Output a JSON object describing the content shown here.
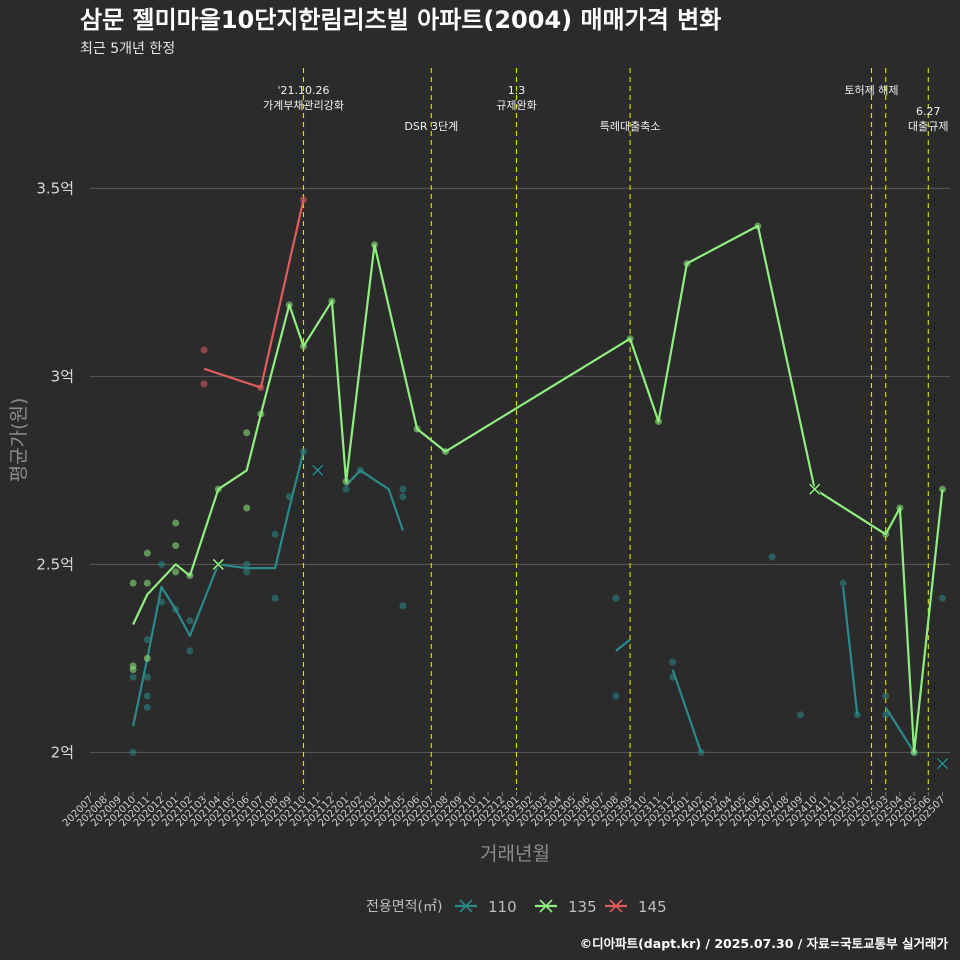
{
  "chart_data": {
    "type": "line",
    "title": "삼문 젤미마을10단지한림리츠빌 아파트(2004) 매매가격 변화",
    "subtitle": "최근 5개년 한정",
    "xlabel": "거래년월",
    "ylabel": "평균가(원)",
    "caption": "©디아파트(dapt.kr) / 2025.07.30 / 자료=국토교통부 실거래가",
    "ylim": [
      1.9,
      3.82
    ],
    "ytick_values": [
      2.0,
      2.5,
      3.0,
      3.5
    ],
    "ytick_labels": [
      "2억",
      "2.5억",
      "3억",
      "3.5억"
    ],
    "grid": true,
    "legend_position": "bottom",
    "legend_title": "전용면적(㎡)",
    "x_months": [
      "202007",
      "202008",
      "202009",
      "202010",
      "202011",
      "202012",
      "202101",
      "202102",
      "202103",
      "202104",
      "202105",
      "202106",
      "202107",
      "202108",
      "202109",
      "202110",
      "202111",
      "202112",
      "202201",
      "202202",
      "202203",
      "202204",
      "202205",
      "202206",
      "202207",
      "202208",
      "202209",
      "202210",
      "202211",
      "202212",
      "202301",
      "202302",
      "202303",
      "202304",
      "202305",
      "202306",
      "202307",
      "202308",
      "202309",
      "202310",
      "202311",
      "202312",
      "202401",
      "202402",
      "202403",
      "202404",
      "202405",
      "202406",
      "202407",
      "202408",
      "202409",
      "202410",
      "202411",
      "202412",
      "202501",
      "202502",
      "202503",
      "202504",
      "202505",
      "202506",
      "202507"
    ],
    "events": [
      {
        "month": "202110",
        "lines": [
          "'21.10.26",
          "가계부채관리강화"
        ],
        "row": 1
      },
      {
        "month": "202207",
        "lines": [
          "DSR 3단계"
        ],
        "row": 2
      },
      {
        "month": "202301",
        "lines": [
          "1.3",
          "규제완화"
        ],
        "row": 1
      },
      {
        "month": "202309",
        "lines": [
          "특례대출축소"
        ],
        "row": 2
      },
      {
        "month": "202502",
        "lines": [
          "토허제 해제"
        ],
        "row": 1
      },
      {
        "month": "202503",
        "lines": [],
        "row": 0
      },
      {
        "month": "202506",
        "lines": [
          "6.27",
          "대출규제"
        ],
        "row": 2
      }
    ],
    "series": [
      {
        "name": "110",
        "color": "#2a8a8a",
        "line": [
          [
            [
              "202010",
              2.07
            ],
            [
              "202011",
              2.25
            ],
            [
              "202012",
              2.44
            ],
            [
              "202101",
              2.38
            ],
            [
              "202102",
              2.31
            ],
            [
              "202104",
              2.5
            ],
            [
              "202106",
              2.49
            ],
            [
              "202107",
              2.49
            ],
            [
              "202108",
              2.49
            ],
            [
              "202109",
              2.65
            ],
            [
              "202110",
              2.8
            ]
          ],
          [
            [
              "202111",
              2.75
            ]
          ],
          [
            [
              "202201",
              2.71
            ],
            [
              "202202",
              2.75
            ],
            [
              "202204",
              2.7
            ],
            [
              "202205",
              2.59
            ]
          ],
          [
            [
              "202308",
              2.27
            ],
            [
              "202309",
              2.3
            ]
          ],
          [
            [
              "202312",
              2.22
            ],
            [
              "202402",
              2.0
            ]
          ],
          [
            [
              "202412",
              2.44
            ],
            [
              "202501",
              2.1
            ]
          ],
          [
            [
              "202503",
              2.12
            ],
            [
              "202505",
              2.0
            ]
          ]
        ],
        "points": [
          [
            "202010",
            2.0
          ],
          [
            "202010",
            2.2
          ],
          [
            "202011",
            2.12
          ],
          [
            "202011",
            2.15
          ],
          [
            "202011",
            2.2
          ],
          [
            "202011",
            2.3
          ],
          [
            "202012",
            2.4
          ],
          [
            "202012",
            2.5
          ],
          [
            "202101",
            2.38
          ],
          [
            "202102",
            2.27
          ],
          [
            "202102",
            2.35
          ],
          [
            "202106",
            2.48
          ],
          [
            "202106",
            2.5
          ],
          [
            "202108",
            2.41
          ],
          [
            "202108",
            2.58
          ],
          [
            "202109",
            2.68
          ],
          [
            "202110",
            2.8
          ],
          [
            "202201",
            2.7
          ],
          [
            "202202",
            2.75
          ],
          [
            "202205",
            2.68
          ],
          [
            "202205",
            2.7
          ],
          [
            "202205",
            2.39
          ],
          [
            "202308",
            2.15
          ],
          [
            "202308",
            2.41
          ],
          [
            "202312",
            2.2
          ],
          [
            "202312",
            2.24
          ],
          [
            "202402",
            2.0
          ],
          [
            "202407",
            2.52
          ],
          [
            "202409",
            2.1
          ],
          [
            "202412",
            2.45
          ],
          [
            "202501",
            2.1
          ],
          [
            "202503",
            2.15
          ],
          [
            "202503",
            2.1
          ],
          [
            "202505",
            2.0
          ],
          [
            "202507",
            2.41
          ]
        ],
        "crosses": [
          [
            "202111",
            2.75
          ],
          [
            "202507",
            1.97
          ]
        ]
      },
      {
        "name": "135",
        "color": "#90ee80",
        "line": [
          [
            [
              "202010",
              2.34
            ],
            [
              "202011",
              2.42
            ],
            [
              "202101",
              2.5
            ],
            [
              "202102",
              2.47
            ],
            [
              "202104",
              2.7
            ],
            [
              "202106",
              2.75
            ],
            [
              "202107",
              2.9
            ],
            [
              "202109",
              3.19
            ],
            [
              "202110",
              3.08
            ],
            [
              "202112",
              3.2
            ],
            [
              "202201",
              2.72
            ],
            [
              "202203",
              3.35
            ],
            [
              "202206",
              2.86
            ],
            [
              "202208",
              2.8
            ],
            [
              "202309",
              3.1
            ],
            [
              "202311",
              2.88
            ],
            [
              "202401",
              3.3
            ],
            [
              "202406",
              3.4
            ],
            [
              "202410",
              2.7
            ],
            [
              "202503",
              2.58
            ],
            [
              "202504",
              2.65
            ],
            [
              "202505",
              2.0
            ],
            [
              "202507",
              2.7
            ]
          ]
        ],
        "points": [
          [
            "202010",
            2.45
          ],
          [
            "202010",
            2.23
          ],
          [
            "202010",
            2.22
          ],
          [
            "202011",
            2.53
          ],
          [
            "202011",
            2.45
          ],
          [
            "202011",
            2.25
          ],
          [
            "202101",
            2.61
          ],
          [
            "202101",
            2.55
          ],
          [
            "202101",
            2.48
          ],
          [
            "202102",
            2.47
          ],
          [
            "202104",
            2.7
          ],
          [
            "202106",
            2.65
          ],
          [
            "202106",
            2.85
          ],
          [
            "202107",
            2.9
          ],
          [
            "202109",
            3.19
          ],
          [
            "202110",
            3.08
          ],
          [
            "202112",
            3.2
          ],
          [
            "202201",
            2.72
          ],
          [
            "202203",
            3.35
          ],
          [
            "202206",
            2.86
          ],
          [
            "202208",
            2.8
          ],
          [
            "202309",
            3.1
          ],
          [
            "202311",
            2.88
          ],
          [
            "202401",
            3.3
          ],
          [
            "202406",
            3.4
          ],
          [
            "202503",
            2.58
          ],
          [
            "202504",
            2.65
          ],
          [
            "202505",
            2.0
          ],
          [
            "202507",
            2.7
          ]
        ],
        "crosses": [
          [
            "202104",
            2.5
          ],
          [
            "202410",
            2.7
          ]
        ]
      },
      {
        "name": "145",
        "color": "#e05c5c",
        "line": [
          [
            [
              "202103",
              3.02
            ],
            [
              "202107",
              2.97
            ],
            [
              "202110",
              3.47
            ]
          ]
        ],
        "points": [
          [
            "202103",
            3.07
          ],
          [
            "202103",
            2.98
          ],
          [
            "202107",
            2.97
          ],
          [
            "202110",
            3.47
          ]
        ],
        "crosses": []
      }
    ]
  }
}
